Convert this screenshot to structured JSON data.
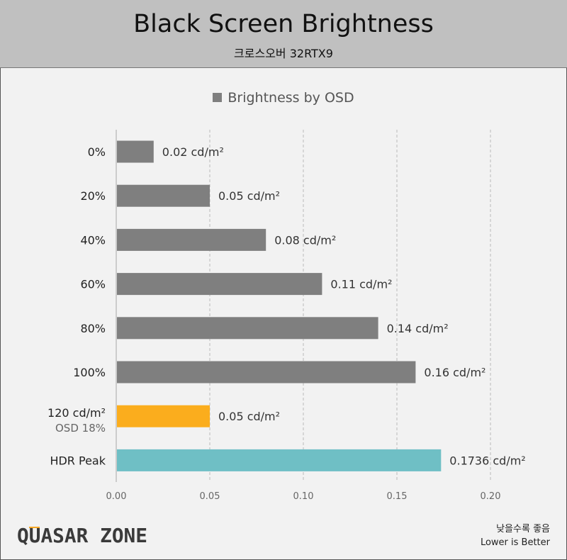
{
  "header": {
    "title": "Black Screen Brightness",
    "subtitle": "크로스오버 32RTX9"
  },
  "footer": {
    "note_ko": "낮을수록 좋음",
    "note_en": "Lower is Better",
    "logo_text": "QUASAR ZONE"
  },
  "chart_data": {
    "type": "bar",
    "orientation": "horizontal",
    "title": "Black Screen Brightness",
    "subtitle": "크로스오버 32RTX9",
    "legend": {
      "entries": [
        "Brightness by OSD"
      ],
      "placement": "top"
    },
    "categories": [
      "0%",
      "20%",
      "40%",
      "60%",
      "80%",
      "100%",
      "120 cd/m²",
      "HDR Peak"
    ],
    "category_sublabels": [
      "",
      "",
      "",
      "",
      "",
      "",
      "OSD 18%",
      ""
    ],
    "values": [
      0.02,
      0.05,
      0.08,
      0.11,
      0.14,
      0.16,
      0.05,
      0.1736
    ],
    "data_labels": [
      "0.02 cd/m²",
      "0.05 cd/m²",
      "0.08 cd/m²",
      "0.11 cd/m²",
      "0.14 cd/m²",
      "0.16 cd/m²",
      "0.05 cd/m²",
      "0.1736 cd/m²"
    ],
    "colors": [
      "#7f7f7f",
      "#7f7f7f",
      "#7f7f7f",
      "#7f7f7f",
      "#7f7f7f",
      "#7f7f7f",
      "#fbad1d",
      "#6fbfc5"
    ],
    "xlim": [
      0,
      0.2
    ],
    "xticks": [
      "0.00",
      "0.05",
      "0.10",
      "0.15",
      "0.20"
    ],
    "grid": "vertical dashed",
    "xlabel": "",
    "ylabel": ""
  }
}
